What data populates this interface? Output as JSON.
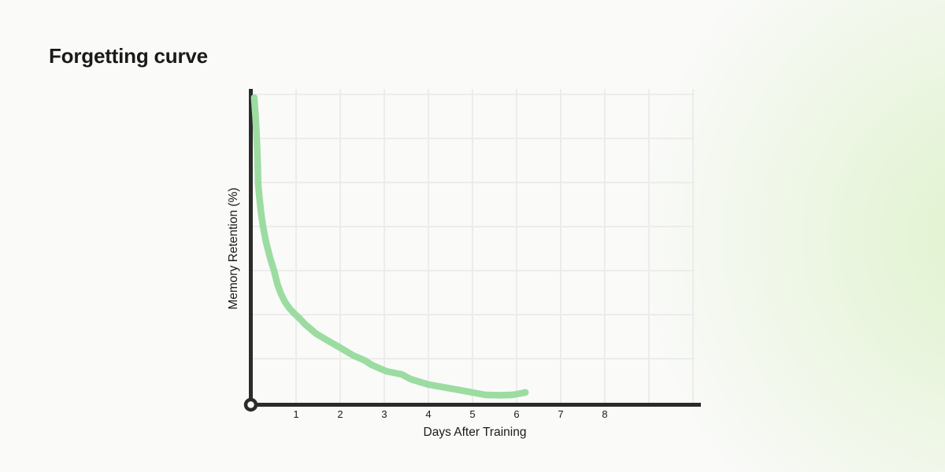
{
  "page": {
    "title": "Forgetting curve"
  },
  "colors": {
    "background": "#fafaf9",
    "glow": "#b5e589",
    "axis": "#2b2b2b",
    "grid": "#ececea",
    "curve": "#9cdca1",
    "text": "#1a1a1a"
  },
  "chart_data": {
    "type": "line",
    "title": "Forgetting curve",
    "xlabel": "Days After Training",
    "ylabel": "Memory Retention (%)",
    "x_ticks": [
      "1",
      "2",
      "3",
      "4",
      "5",
      "6",
      "7",
      "8"
    ],
    "xlim": [
      0,
      10.2
    ],
    "ylim": [
      0,
      100
    ],
    "grid": true,
    "legend": false,
    "series": [
      {
        "name": "Memory retention",
        "color": "#9cdca1",
        "stroke_width": 8.5,
        "points": [
          [
            0.05,
            98
          ],
          [
            0.08,
            92
          ],
          [
            0.1,
            87
          ],
          [
            0.12,
            81
          ],
          [
            0.13,
            76
          ],
          [
            0.14,
            70.5
          ],
          [
            0.17,
            66
          ],
          [
            0.2,
            62
          ],
          [
            0.25,
            57
          ],
          [
            0.32,
            52
          ],
          [
            0.41,
            47
          ],
          [
            0.5,
            43
          ],
          [
            0.58,
            38.5
          ],
          [
            0.66,
            35.5
          ],
          [
            0.75,
            33
          ],
          [
            0.85,
            31
          ],
          [
            0.95,
            29.5
          ],
          [
            1.1,
            27.5
          ],
          [
            1.2,
            26
          ],
          [
            1.45,
            23
          ],
          [
            1.75,
            20.5
          ],
          [
            2.0,
            18.5
          ],
          [
            2.3,
            16
          ],
          [
            2.55,
            14.5
          ],
          [
            2.72,
            13
          ],
          [
            3.05,
            11
          ],
          [
            3.4,
            10
          ],
          [
            3.6,
            8.5
          ],
          [
            4.0,
            6.8
          ],
          [
            4.4,
            5.8
          ],
          [
            4.8,
            4.8
          ],
          [
            5.1,
            4.0
          ],
          [
            5.3,
            3.5
          ],
          [
            5.6,
            3.4
          ],
          [
            5.9,
            3.5
          ],
          [
            6.1,
            4.0
          ],
          [
            6.2,
            4.3
          ]
        ]
      }
    ],
    "style": {
      "origin_marker": "open-circle",
      "axis_style": "bold-L-axes",
      "background_grid": "light-gray-squares"
    }
  }
}
